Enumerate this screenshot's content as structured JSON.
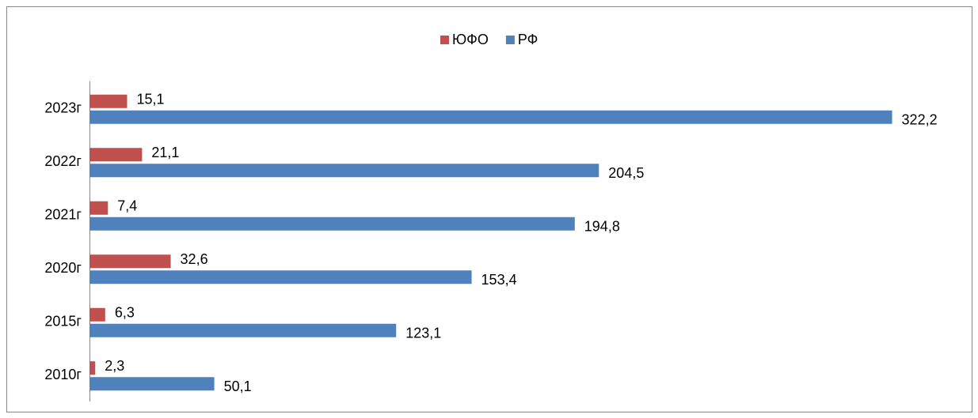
{
  "chart_data": {
    "type": "barh",
    "categories": [
      "2010г",
      "2015г",
      "2020г",
      "2021г",
      "2022г",
      "2023г"
    ],
    "series": [
      {
        "name": "ЮФО",
        "color": "#c0504d",
        "values": [
          2.3,
          6.3,
          32.6,
          7.4,
          21.1,
          15.1
        ],
        "value_labels": [
          "2,3",
          "6,3",
          "32,6",
          "7,4",
          "21,1",
          "15,1"
        ]
      },
      {
        "name": "РФ",
        "color": "#4f81bd",
        "values": [
          50.1,
          123.1,
          153.4,
          194.8,
          204.5,
          322.2
        ],
        "value_labels": [
          "50,1",
          "123,1",
          "153,4",
          "194,8",
          "204,5",
          "322,2"
        ]
      }
    ],
    "xlim": [
      0,
      350
    ],
    "legend": "top"
  }
}
